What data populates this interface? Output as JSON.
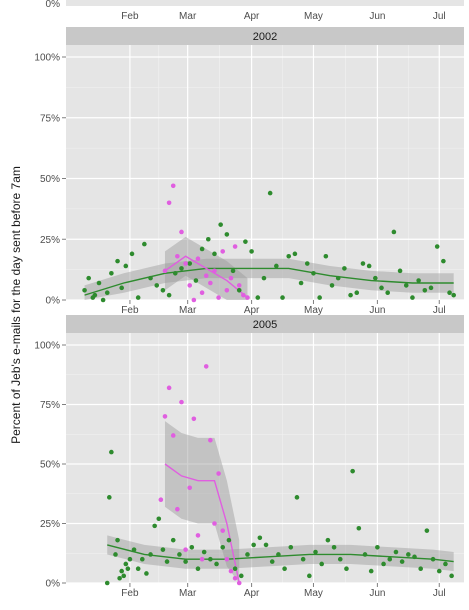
{
  "chart_data": {
    "type": "scatter",
    "ylabel": "Percent of Jeb's e-mails for the day sent before 7am",
    "x_tick_labels": [
      "Feb",
      "Mar",
      "Apr",
      "May",
      "Jun",
      "Jul"
    ],
    "y_tick_labels": [
      "0%",
      "25%",
      "50%",
      "75%",
      "100%"
    ],
    "ylim": [
      0,
      100
    ],
    "grid": true,
    "colors": {
      "green": "#2e8b2e",
      "magenta": "#e05ee0",
      "panel": "#e5e5e5",
      "strip": "#c8c8c8"
    },
    "panels": [
      {
        "title": "2002",
        "series": [
          {
            "color": "green",
            "x": [
              1,
              3,
              5,
              6,
              8,
              10,
              12,
              14,
              17,
              19,
              21,
              24,
              27,
              30,
              33,
              36,
              39,
              42,
              45,
              48,
              52,
              55,
              58,
              61,
              64,
              67,
              70,
              73,
              76,
              79,
              82,
              85,
              88,
              91,
              94,
              97,
              100,
              103,
              106,
              109,
              112,
              115,
              118,
              121,
              124,
              127,
              130,
              133,
              136,
              139,
              142,
              145,
              148,
              151,
              154,
              157,
              160,
              163,
              166,
              169,
              172,
              175,
              178,
              180
            ],
            "y": [
              4,
              9,
              1,
              2,
              7,
              0,
              3,
              11,
              16,
              5,
              14,
              19,
              1,
              23,
              9,
              6,
              4,
              2,
              11,
              13,
              15,
              8,
              21,
              25,
              19,
              31,
              27,
              12,
              4,
              24,
              20,
              1,
              9,
              44,
              14,
              1,
              18,
              19,
              7,
              15,
              11,
              1,
              18,
              6,
              9,
              13,
              2,
              3,
              15,
              14,
              9,
              5,
              3,
              28,
              12,
              6,
              1,
              8,
              4,
              5,
              22,
              16,
              3,
              2
            ]
          },
          {
            "color": "magenta",
            "x": [
              40,
              42,
              44,
              46,
              48,
              50,
              52,
              54,
              56,
              58,
              60,
              62,
              64,
              66,
              68,
              70,
              72,
              74,
              76,
              78,
              80
            ],
            "y": [
              12,
              40,
              47,
              18,
              28,
              15,
              6,
              0,
              17,
              3,
              10,
              7,
              12,
              1,
              20,
              4,
              9,
              22,
              6,
              2,
              1
            ]
          }
        ],
        "trends": [
          {
            "color": "green",
            "x": [
              1,
              20,
              40,
              60,
              80,
              100,
              120,
              140,
              160,
              180
            ],
            "y": [
              2,
              7,
              11,
              13,
              13,
              13,
              10,
              8,
              7,
              7
            ]
          },
          {
            "color": "magenta",
            "x": [
              40,
              50,
              60,
              70,
              80
            ],
            "y": [
              12,
              18,
              13,
              8,
              1
            ]
          }
        ]
      },
      {
        "title": "2005",
        "series": [
          {
            "color": "green",
            "x": [
              12,
              13,
              14,
              16,
              17,
              18,
              19,
              20,
              21,
              22,
              23,
              25,
              27,
              29,
              31,
              33,
              35,
              37,
              39,
              41,
              44,
              47,
              50,
              53,
              56,
              59,
              62,
              65,
              68,
              71,
              74,
              77,
              80,
              83,
              86,
              89,
              92,
              95,
              98,
              101,
              104,
              107,
              110,
              113,
              116,
              119,
              122,
              125,
              128,
              131,
              134,
              137,
              140,
              143,
              146,
              149,
              152,
              155,
              158,
              161,
              164,
              167,
              170,
              173,
              176,
              179
            ],
            "y": [
              0,
              36,
              55,
              12,
              18,
              2,
              5,
              3,
              8,
              6,
              10,
              14,
              6,
              10,
              4,
              12,
              24,
              27,
              14,
              9,
              18,
              12,
              9,
              15,
              6,
              13,
              10,
              8,
              15,
              18,
              6,
              3,
              12,
              16,
              19,
              16,
              9,
              12,
              6,
              15,
              36,
              10,
              3,
              13,
              8,
              18,
              15,
              10,
              6,
              47,
              23,
              12,
              5,
              15,
              8,
              10,
              13,
              9,
              12,
              11,
              6,
              22,
              10,
              5,
              8,
              3
            ]
          },
          {
            "color": "magenta",
            "x": [
              38,
              40,
              42,
              44,
              46,
              48,
              50,
              52,
              54,
              56,
              58,
              60,
              62,
              64,
              66,
              68,
              70,
              72,
              74,
              76
            ],
            "y": [
              35,
              70,
              82,
              62,
              31,
              76,
              14,
              40,
              69,
              20,
              10,
              91,
              60,
              25,
              46,
              22,
              10,
              5,
              2,
              0
            ]
          }
        ],
        "trends": [
          {
            "color": "green",
            "x": [
              12,
              30,
              50,
              70,
              90,
              110,
              130,
              150,
              170,
              180
            ],
            "y": [
              16,
              12,
              10,
              10,
              11,
              12,
              12,
              11,
              10,
              9
            ]
          },
          {
            "color": "magenta",
            "x": [
              40,
              48,
              56,
              64,
              70,
              76
            ],
            "y": [
              50,
              45,
              43,
              43,
              25,
              0
            ]
          }
        ]
      }
    ]
  }
}
